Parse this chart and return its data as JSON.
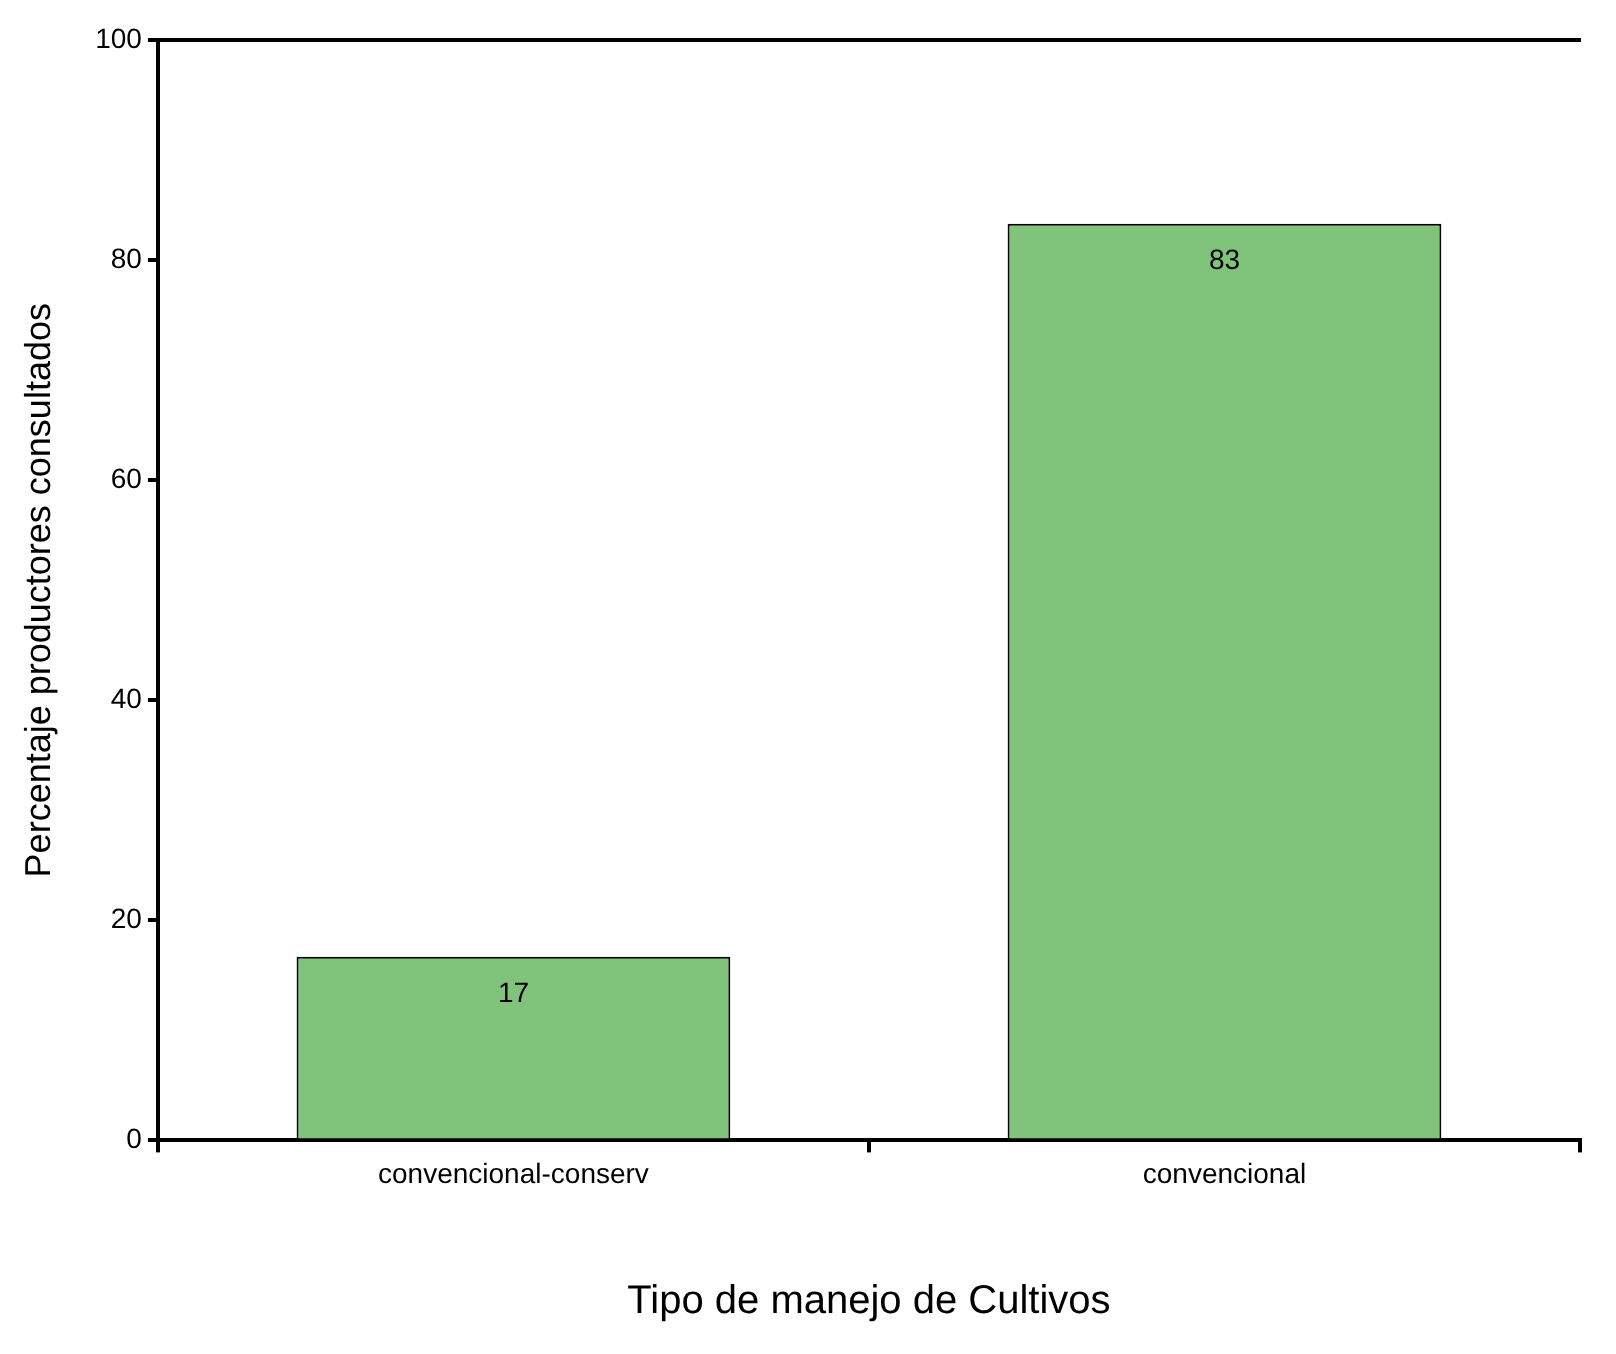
{
  "chart_data": {
    "type": "bar",
    "xlabel": "Tipo de manejo de Cultivos",
    "ylabel": "Percentaje productores consultados",
    "categories": [
      "convencional-conserv",
      "convencional"
    ],
    "values": [
      16.7,
      83.3
    ],
    "value_labels": [
      "17",
      "83"
    ],
    "color": "#80c47c",
    "ylim": [
      0,
      100
    ],
    "yticks": [
      0,
      20,
      40,
      60,
      80,
      100
    ],
    "grid": false,
    "legend": false
  }
}
